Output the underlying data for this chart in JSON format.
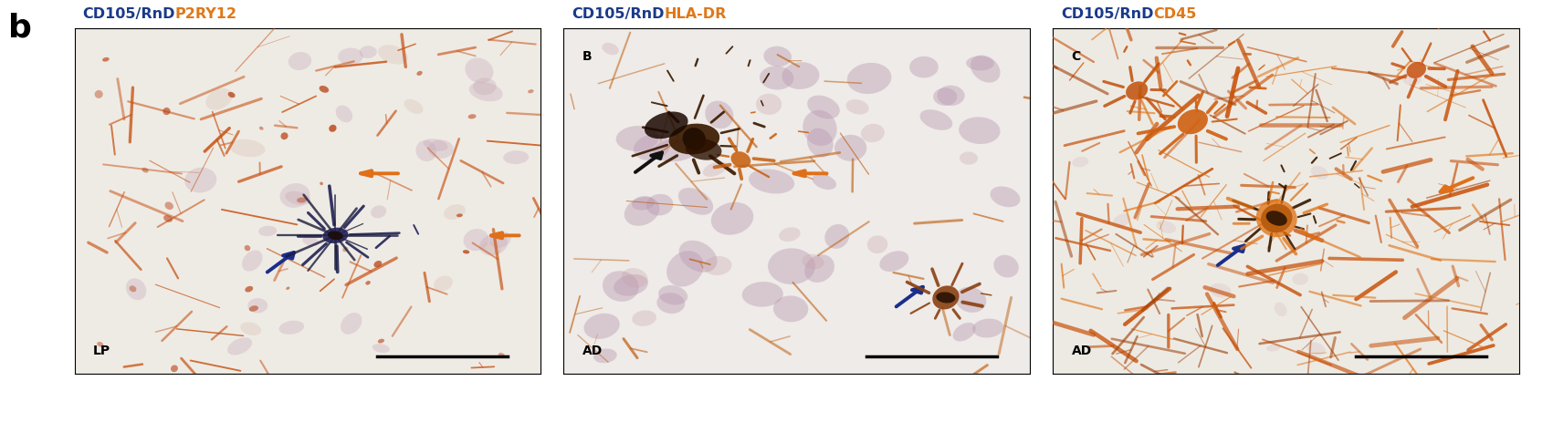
{
  "figure_label": "b",
  "figure_label_fontsize": 26,
  "figure_label_weight": "bold",
  "figure_bg": "#ffffff",
  "title_fontsize": 11.5,
  "panels": [
    {
      "title_parts": [
        {
          "text": "CD105/RnD",
          "color": "#1a3a8a"
        },
        {
          "text": "P2RY12",
          "color": "#e07818"
        }
      ],
      "corner_label": "",
      "bottom_label": "LP",
      "bg_color": "#f0ece6",
      "panel_id": 0
    },
    {
      "title_parts": [
        {
          "text": "CD105/RnD",
          "color": "#1a3a8a"
        },
        {
          "text": "HLA-DR",
          "color": "#e07818"
        }
      ],
      "corner_label": "B",
      "bottom_label": "AD",
      "bg_color": "#ede8e2",
      "panel_id": 1
    },
    {
      "title_parts": [
        {
          "text": "CD105/RnD",
          "color": "#1a3a8a"
        },
        {
          "text": "CD45",
          "color": "#e07818"
        }
      ],
      "corner_label": "C",
      "bottom_label": "AD",
      "bg_color": "#eee8e0",
      "panel_id": 2
    }
  ]
}
